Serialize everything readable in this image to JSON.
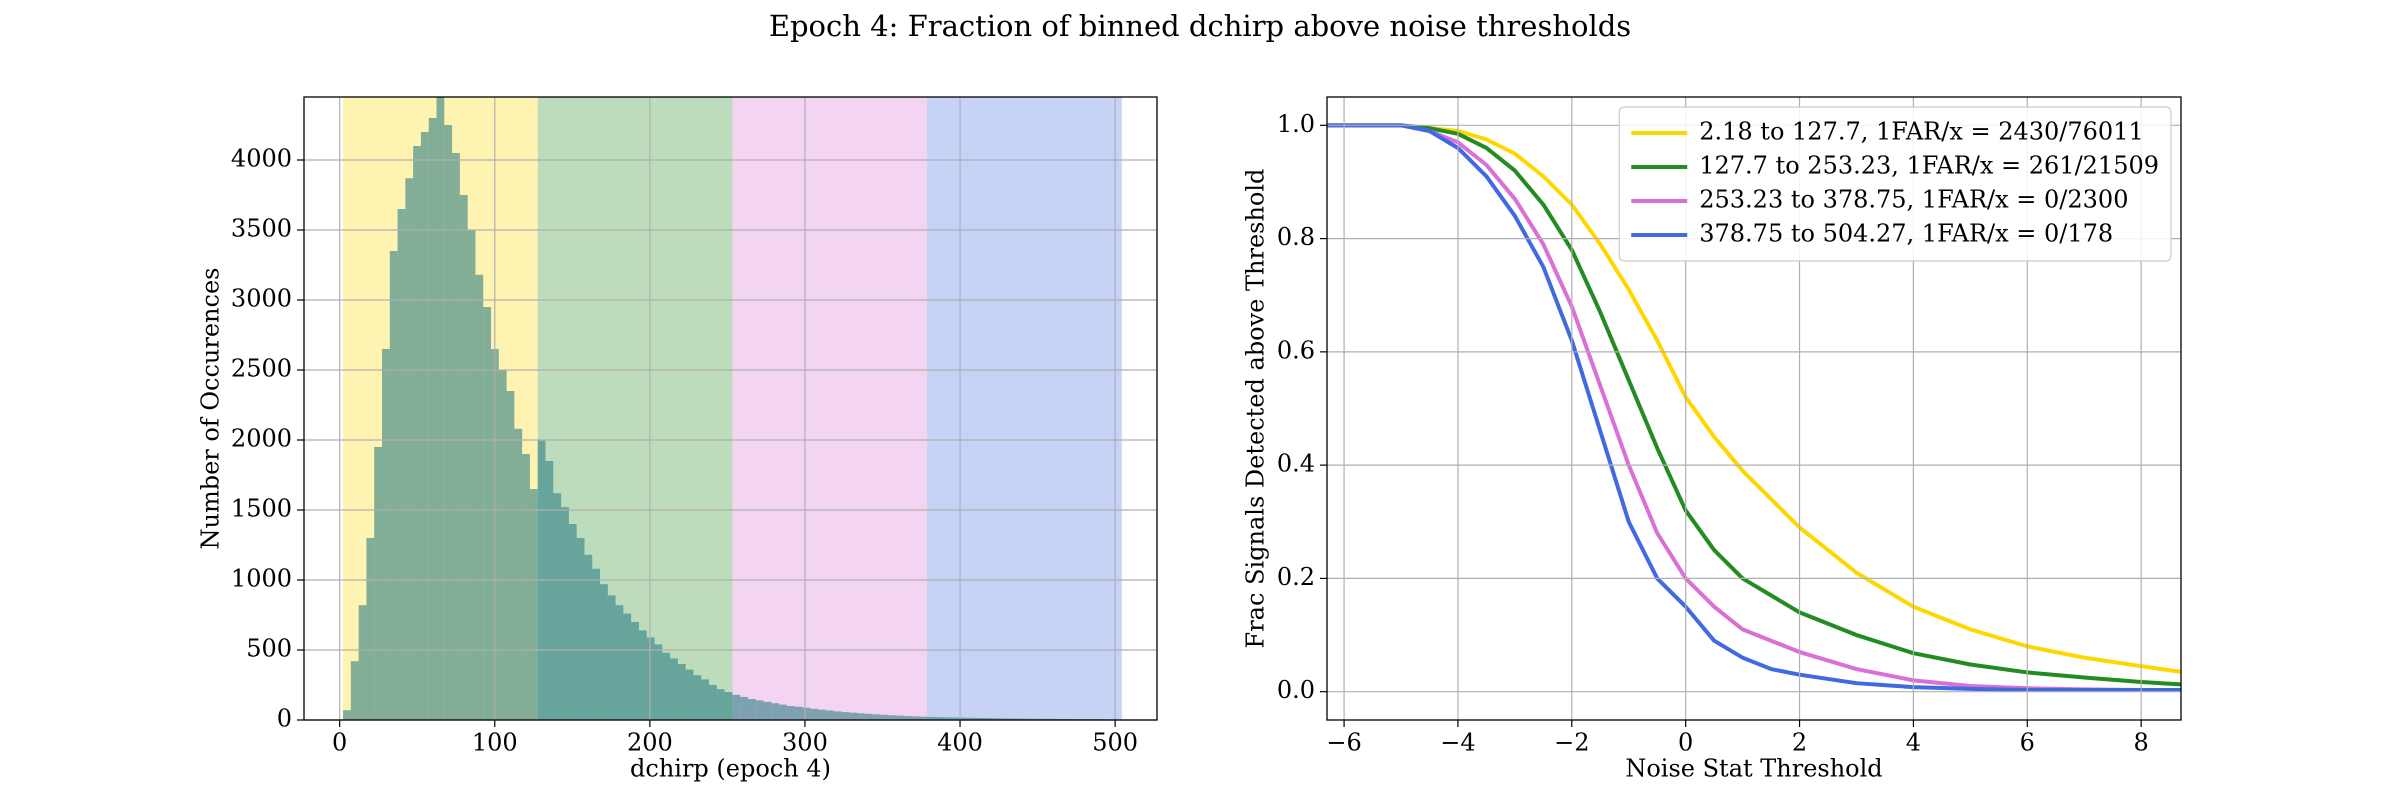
{
  "title": "Epoch 4: Fraction of binned dchirp above noise thresholds",
  "chart_data": [
    {
      "type": "histogram",
      "xlabel": "dchirp (epoch 4)",
      "ylabel": "Number of Occurences",
      "color": "#2f7f86",
      "grid": true,
      "xlim": [
        -23,
        527
      ],
      "ylim": [
        0,
        4450
      ],
      "xticks": [
        0,
        100,
        200,
        300,
        400,
        500
      ],
      "yticks": [
        0,
        500,
        1000,
        1500,
        2000,
        2500,
        3000,
        3500,
        4000
      ],
      "bands": [
        {
          "range": [
            2.18,
            127.7
          ],
          "color": "#ffd700"
        },
        {
          "range": [
            127.7,
            253.23
          ],
          "color": "#228b22"
        },
        {
          "range": [
            253.23,
            378.75
          ],
          "color": "#da70d6"
        },
        {
          "range": [
            378.75,
            504.27
          ],
          "color": "#4169e1"
        }
      ],
      "bins": [
        2.18,
        7.2,
        12.22,
        17.24,
        22.26,
        27.28,
        32.31,
        37.33,
        42.35,
        47.37,
        52.39,
        57.41,
        62.43,
        67.45,
        72.47,
        77.49,
        82.51,
        87.54,
        92.56,
        97.58,
        102.6,
        107.62,
        112.64,
        117.66,
        122.68,
        127.7,
        132.72,
        137.74,
        142.77,
        147.79,
        152.81,
        157.83,
        162.85,
        167.87,
        172.89,
        177.91,
        182.93,
        187.95,
        192.97,
        198.0,
        203.02,
        208.04,
        213.06,
        218.08,
        223.1,
        228.12,
        233.14,
        238.16,
        243.18,
        248.2,
        253.23,
        258.25,
        263.27,
        268.29,
        273.31,
        278.33,
        283.35,
        288.37,
        293.39,
        298.41,
        303.43,
        308.46,
        313.48,
        318.5,
        323.52,
        328.54,
        333.56,
        338.58,
        343.6,
        348.62,
        353.64,
        358.66,
        363.69,
        368.71,
        373.73,
        378.75,
        383.77,
        388.79,
        393.81,
        398.83,
        403.85,
        408.87,
        413.89,
        418.92,
        423.94,
        428.96,
        433.98,
        439.0,
        444.02,
        449.04,
        454.06,
        459.08,
        464.1,
        469.12,
        474.15,
        479.17,
        484.19,
        489.21,
        494.23,
        499.25,
        504.27
      ],
      "values": [
        70,
        420,
        820,
        1300,
        1950,
        2650,
        3350,
        3650,
        3870,
        4100,
        4200,
        4300,
        4450,
        4250,
        4050,
        3750,
        3500,
        3180,
        2950,
        2650,
        2500,
        2350,
        2080,
        1900,
        1650,
        2000,
        1850,
        1620,
        1520,
        1400,
        1300,
        1180,
        1080,
        970,
        890,
        820,
        760,
        700,
        640,
        590,
        540,
        480,
        440,
        400,
        360,
        320,
        290,
        250,
        220,
        200,
        180,
        165,
        150,
        140,
        130,
        120,
        110,
        100,
        95,
        88,
        80,
        74,
        68,
        62,
        57,
        52,
        48,
        44,
        40,
        37,
        34,
        31,
        28,
        26,
        24,
        22,
        20,
        19,
        18,
        17,
        16,
        15,
        14,
        13,
        12,
        11,
        10,
        10,
        9,
        9,
        8,
        8,
        7,
        7,
        6,
        6,
        5,
        5,
        4,
        4
      ]
    },
    {
      "type": "line",
      "xlabel": "Noise Stat Threshold",
      "ylabel": "Frac Signals Detected above Threshold",
      "grid": true,
      "legend": "upper right",
      "xlim": [
        -6.3,
        8.7
      ],
      "ylim": [
        -0.05,
        1.05
      ],
      "xticks": [
        {
          "value": -6,
          "label": "−6"
        },
        {
          "value": -4,
          "label": "−4"
        },
        {
          "value": -2,
          "label": "−2"
        },
        0,
        2,
        4,
        6,
        8
      ],
      "yticks": [
        {
          "value": 0,
          "label": "0.0"
        },
        {
          "value": 0.2,
          "label": "0.2"
        },
        {
          "value": 0.4,
          "label": "0.4"
        },
        {
          "value": 0.6,
          "label": "0.6"
        },
        {
          "value": 0.8,
          "label": "0.8"
        },
        {
          "value": 1,
          "label": "1.0"
        }
      ],
      "x": [
        -6.3,
        -5,
        -4.5,
        -4,
        -3.5,
        -3,
        -2.5,
        -2,
        -1.5,
        -1,
        -0.5,
        0,
        0.5,
        1,
        1.5,
        2,
        3,
        4,
        5,
        6,
        7,
        8,
        8.7
      ],
      "series": [
        {
          "name": "2.18 to 127.7, 1FAR/x = 2430/76011",
          "color": "#ffd700",
          "values": [
            1,
            1,
            0.995,
            0.99,
            0.975,
            0.95,
            0.91,
            0.86,
            0.79,
            0.71,
            0.62,
            0.52,
            0.45,
            0.39,
            0.34,
            0.29,
            0.21,
            0.15,
            0.11,
            0.08,
            0.06,
            0.045,
            0.035
          ]
        },
        {
          "name": "127.7 to 253.23, 1FAR/x = 261/21509",
          "color": "#228b22",
          "values": [
            1,
            1,
            0.995,
            0.985,
            0.96,
            0.92,
            0.86,
            0.78,
            0.67,
            0.55,
            0.43,
            0.32,
            0.25,
            0.2,
            0.17,
            0.14,
            0.1,
            0.068,
            0.048,
            0.034,
            0.025,
            0.017,
            0.013
          ]
        },
        {
          "name": "253.23 to 378.75, 1FAR/x = 0/2300",
          "color": "#da70d6",
          "values": [
            1,
            1,
            0.99,
            0.97,
            0.93,
            0.87,
            0.79,
            0.68,
            0.54,
            0.4,
            0.28,
            0.2,
            0.15,
            0.11,
            0.09,
            0.07,
            0.04,
            0.02,
            0.01,
            0.006,
            0.004,
            0.003,
            0.003
          ]
        },
        {
          "name": "378.75 to 504.27, 1FAR/x = 0/178",
          "color": "#4169e1",
          "values": [
            1,
            1,
            0.99,
            0.96,
            0.91,
            0.84,
            0.75,
            0.62,
            0.46,
            0.3,
            0.2,
            0.15,
            0.09,
            0.06,
            0.04,
            0.03,
            0.015,
            0.008,
            0.005,
            0.003,
            0.003,
            0.003,
            0.003
          ]
        }
      ]
    }
  ]
}
